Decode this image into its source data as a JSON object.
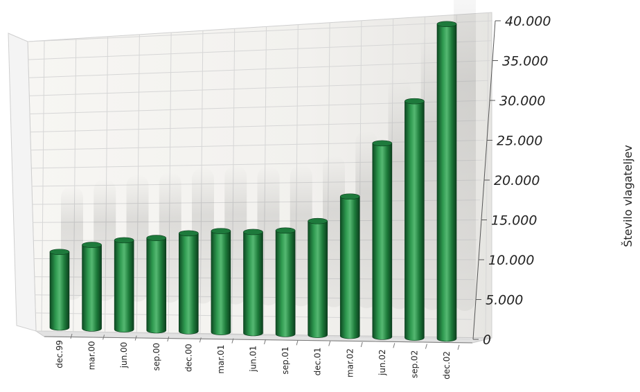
{
  "chart_data": {
    "type": "bar",
    "title": "",
    "xlabel": "",
    "ylabel": "Število vlagateljev",
    "categories": [
      "dec.99",
      "mar.00",
      "jun.00",
      "sep.00",
      "dec.00",
      "mar.01",
      "jun.01",
      "sep.01",
      "dec.01",
      "mar.02",
      "jun.02",
      "sep.02",
      "dec.02"
    ],
    "values": [
      9500,
      10500,
      11200,
      11600,
      12300,
      12700,
      12700,
      13000,
      14300,
      17500,
      24300,
      29700,
      39500
    ],
    "yticks": [
      "0",
      "5.000",
      "10.000",
      "15.000",
      "20.000",
      "25.000",
      "30.000",
      "35.000",
      "40.000"
    ],
    "ylim": [
      0,
      40000
    ],
    "grid": true,
    "legend": "none",
    "colors": {
      "bar": "#1e7a3c",
      "bar_light": "#52b56d",
      "bar_dark": "#0d4a22",
      "grid": "#d6d6d6",
      "wall": "#f0efec"
    }
  }
}
